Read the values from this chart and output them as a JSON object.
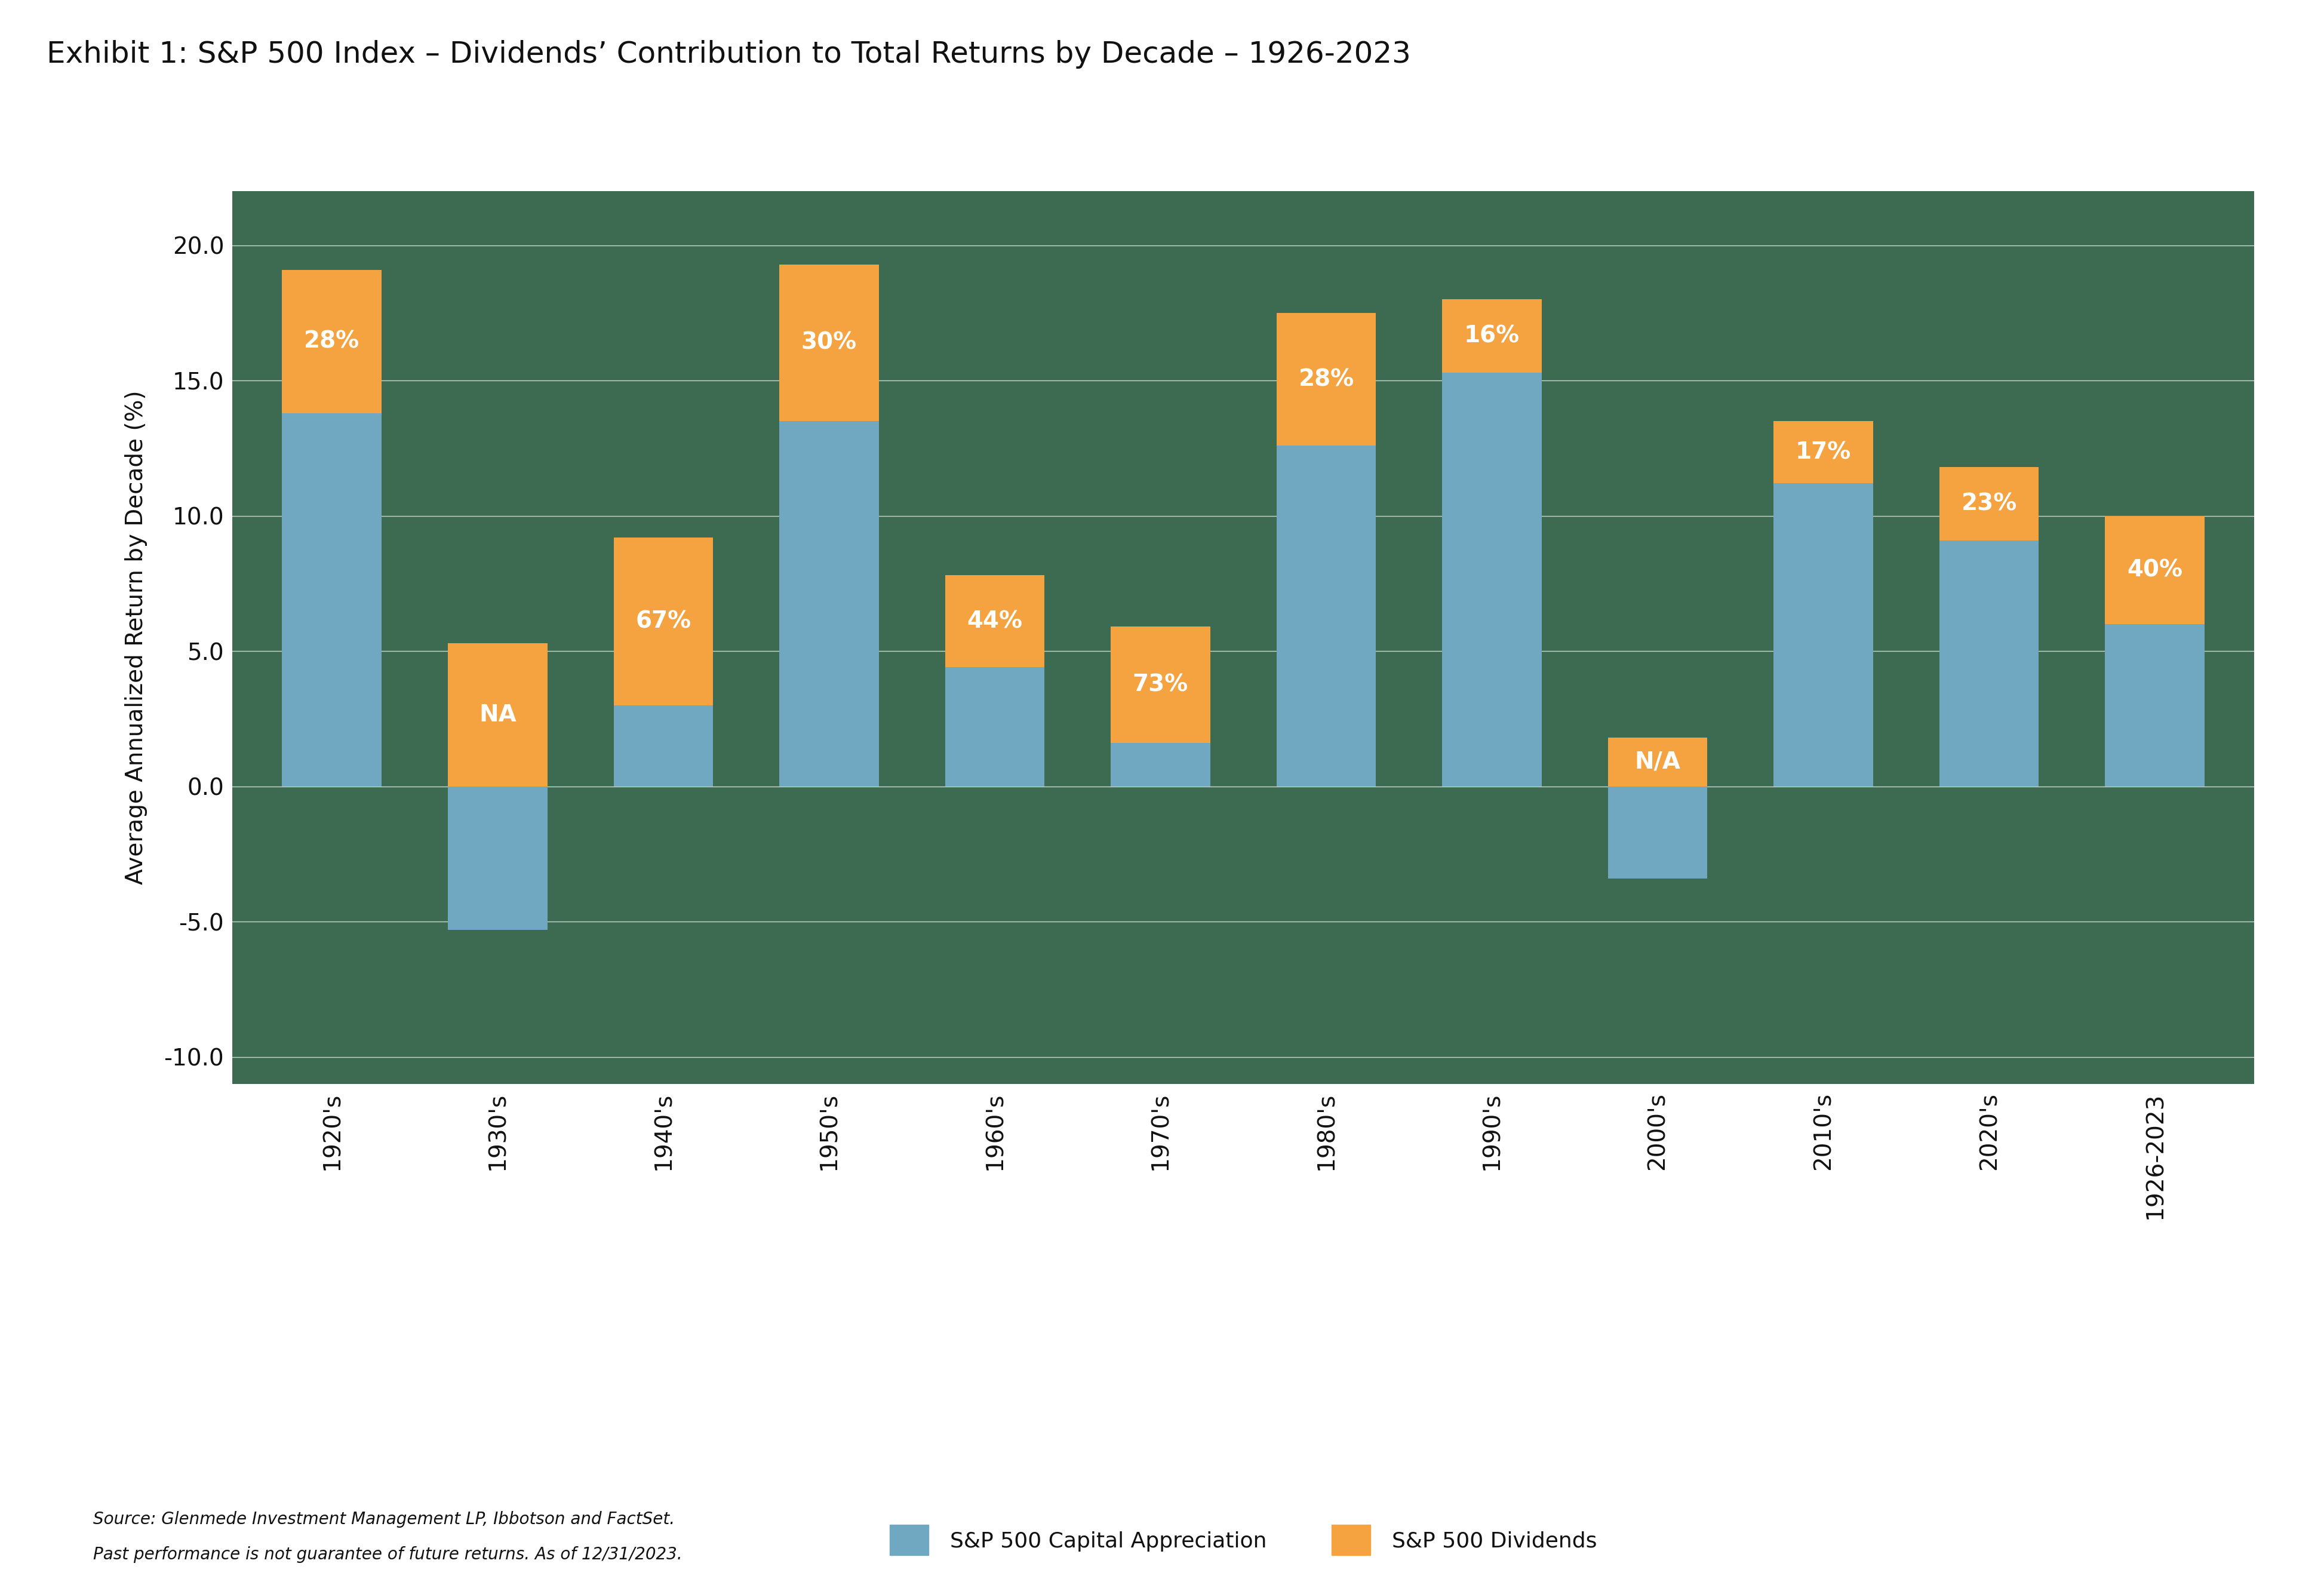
{
  "title": "Exhibit 1: S&P 500 Index – Dividends’ Contribution to Total Returns by Decade – 1926-2023",
  "categories": [
    "1920's",
    "1930's",
    "1940's",
    "1950's",
    "1960's",
    "1970's",
    "1980's",
    "1990's",
    "2000's",
    "2010's",
    "2020's",
    "1926-2023"
  ],
  "capital_appreciation": [
    13.8,
    -5.3,
    3.0,
    13.5,
    4.4,
    1.6,
    12.6,
    15.3,
    -3.4,
    11.2,
    9.1,
    6.0
  ],
  "dividends": [
    5.3,
    5.3,
    6.2,
    5.8,
    3.4,
    4.3,
    4.9,
    2.7,
    1.8,
    2.3,
    2.7,
    4.0
  ],
  "labels": [
    "28%",
    "NA",
    "67%",
    "30%",
    "44%",
    "73%",
    "28%",
    "16%",
    "N/A",
    "17%",
    "23%",
    "40%"
  ],
  "color_capital": "#6fa8c0",
  "color_dividends": "#f4a340",
  "background_color": "#3d6b52",
  "ylabel": "Average Annualized Return by Decade (%)",
  "ylim": [
    -11.0,
    22.0
  ],
  "yticks": [
    -10.0,
    -5.0,
    0.0,
    5.0,
    10.0,
    15.0,
    20.0
  ],
  "source_line1": "Source: Glenmede Investment Management LP, Ibbotson and FactSet.",
  "source_line2": "Past performance is not guarantee of future returns. As of 12/31/2023.",
  "legend_label1": "S&P 500 Capital Appreciation",
  "legend_label2": "S&P 500 Dividends",
  "title_fontsize": 36,
  "axis_label_fontsize": 28,
  "tick_fontsize": 28,
  "bar_label_fontsize": 28,
  "legend_fontsize": 26,
  "source_fontsize": 20
}
